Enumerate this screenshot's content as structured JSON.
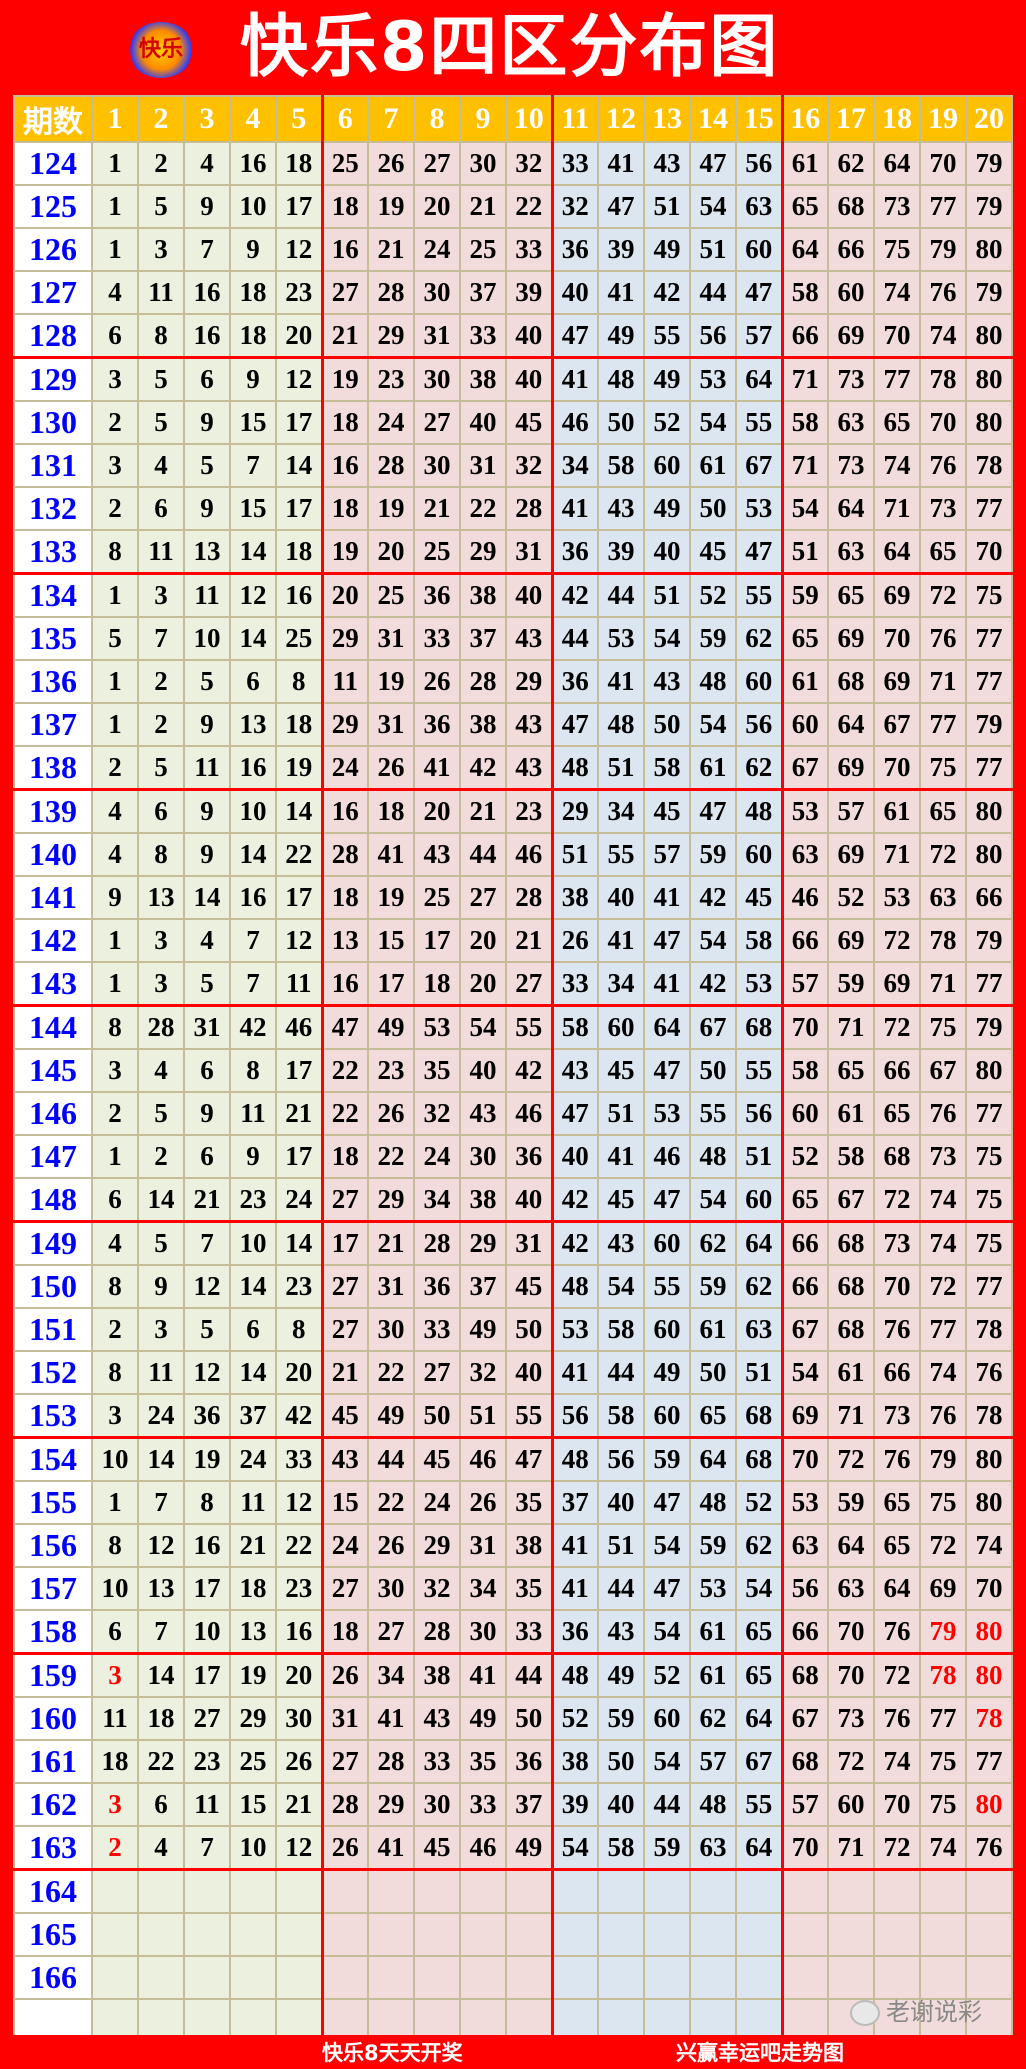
{
  "title": {
    "logo_text": "快乐",
    "text": "快乐8四区分布图"
  },
  "colors": {
    "background": "#ff0000",
    "header": "#ffc000",
    "zone1": "#ebf1de",
    "zone2": "#f2dcdb",
    "zone3": "#dce6f1",
    "zone4": "#f2dcdb",
    "period": "#0000ff",
    "highlight": "#ff0000"
  },
  "table": {
    "headers": [
      "期数",
      "1",
      "2",
      "3",
      "4",
      "5",
      "6",
      "7",
      "8",
      "9",
      "10",
      "11",
      "12",
      "13",
      "14",
      "15",
      "16",
      "17",
      "18",
      "19",
      "20"
    ],
    "rows": [
      {
        "period": "124",
        "nums": [
          "1",
          "2",
          "4",
          "16",
          "18",
          "25",
          "26",
          "27",
          "30",
          "32",
          "33",
          "41",
          "43",
          "47",
          "56",
          "61",
          "62",
          "64",
          "70",
          "79"
        ],
        "red": []
      },
      {
        "period": "125",
        "nums": [
          "1",
          "5",
          "9",
          "10",
          "17",
          "18",
          "19",
          "20",
          "21",
          "22",
          "32",
          "47",
          "51",
          "54",
          "63",
          "65",
          "68",
          "73",
          "77",
          "79"
        ],
        "red": []
      },
      {
        "period": "126",
        "nums": [
          "1",
          "3",
          "7",
          "9",
          "12",
          "16",
          "21",
          "24",
          "25",
          "33",
          "36",
          "39",
          "49",
          "51",
          "60",
          "64",
          "66",
          "75",
          "79",
          "80"
        ],
        "red": []
      },
      {
        "period": "127",
        "nums": [
          "4",
          "11",
          "16",
          "18",
          "23",
          "27",
          "28",
          "30",
          "37",
          "39",
          "40",
          "41",
          "42",
          "44",
          "47",
          "58",
          "60",
          "74",
          "76",
          "79"
        ],
        "red": []
      },
      {
        "period": "128",
        "nums": [
          "6",
          "8",
          "16",
          "18",
          "20",
          "21",
          "29",
          "31",
          "33",
          "40",
          "47",
          "49",
          "55",
          "56",
          "57",
          "66",
          "69",
          "70",
          "74",
          "80"
        ],
        "red": []
      },
      {
        "period": "129",
        "nums": [
          "3",
          "5",
          "6",
          "9",
          "12",
          "19",
          "23",
          "30",
          "38",
          "40",
          "41",
          "48",
          "49",
          "53",
          "64",
          "71",
          "73",
          "77",
          "78",
          "80"
        ],
        "red": []
      },
      {
        "period": "130",
        "nums": [
          "2",
          "5",
          "9",
          "15",
          "17",
          "18",
          "24",
          "27",
          "40",
          "45",
          "46",
          "50",
          "52",
          "54",
          "55",
          "58",
          "63",
          "65",
          "70",
          "80"
        ],
        "red": []
      },
      {
        "period": "131",
        "nums": [
          "3",
          "4",
          "5",
          "7",
          "14",
          "16",
          "28",
          "30",
          "31",
          "32",
          "34",
          "58",
          "60",
          "61",
          "67",
          "71",
          "73",
          "74",
          "76",
          "78"
        ],
        "red": []
      },
      {
        "period": "132",
        "nums": [
          "2",
          "6",
          "9",
          "15",
          "17",
          "18",
          "19",
          "21",
          "22",
          "28",
          "41",
          "43",
          "49",
          "50",
          "53",
          "54",
          "64",
          "71",
          "73",
          "77"
        ],
        "red": []
      },
      {
        "period": "133",
        "nums": [
          "8",
          "11",
          "13",
          "14",
          "18",
          "19",
          "20",
          "25",
          "29",
          "31",
          "36",
          "39",
          "40",
          "45",
          "47",
          "51",
          "63",
          "64",
          "65",
          "70"
        ],
        "red": []
      },
      {
        "period": "134",
        "nums": [
          "1",
          "3",
          "11",
          "12",
          "16",
          "20",
          "25",
          "36",
          "38",
          "40",
          "42",
          "44",
          "51",
          "52",
          "55",
          "59",
          "65",
          "69",
          "72",
          "75"
        ],
        "red": []
      },
      {
        "period": "135",
        "nums": [
          "5",
          "7",
          "10",
          "14",
          "25",
          "29",
          "31",
          "33",
          "37",
          "43",
          "44",
          "53",
          "54",
          "59",
          "62",
          "65",
          "69",
          "70",
          "76",
          "77"
        ],
        "red": []
      },
      {
        "period": "136",
        "nums": [
          "1",
          "2",
          "5",
          "6",
          "8",
          "11",
          "19",
          "26",
          "28",
          "29",
          "36",
          "41",
          "43",
          "48",
          "60",
          "61",
          "68",
          "69",
          "71",
          "77"
        ],
        "red": []
      },
      {
        "period": "137",
        "nums": [
          "1",
          "2",
          "9",
          "13",
          "18",
          "29",
          "31",
          "36",
          "38",
          "43",
          "47",
          "48",
          "50",
          "54",
          "56",
          "60",
          "64",
          "67",
          "77",
          "79"
        ],
        "red": []
      },
      {
        "period": "138",
        "nums": [
          "2",
          "5",
          "11",
          "16",
          "19",
          "24",
          "26",
          "41",
          "42",
          "43",
          "48",
          "51",
          "58",
          "61",
          "62",
          "67",
          "69",
          "70",
          "75",
          "77"
        ],
        "red": []
      },
      {
        "period": "139",
        "nums": [
          "4",
          "6",
          "9",
          "10",
          "14",
          "16",
          "18",
          "20",
          "21",
          "23",
          "29",
          "34",
          "45",
          "47",
          "48",
          "53",
          "57",
          "61",
          "65",
          "80"
        ],
        "red": []
      },
      {
        "period": "140",
        "nums": [
          "4",
          "8",
          "9",
          "14",
          "22",
          "28",
          "41",
          "43",
          "44",
          "46",
          "51",
          "55",
          "57",
          "59",
          "60",
          "63",
          "69",
          "71",
          "72",
          "80"
        ],
        "red": []
      },
      {
        "period": "141",
        "nums": [
          "9",
          "13",
          "14",
          "16",
          "17",
          "18",
          "19",
          "25",
          "27",
          "28",
          "38",
          "40",
          "41",
          "42",
          "45",
          "46",
          "52",
          "53",
          "63",
          "66"
        ],
        "red": []
      },
      {
        "period": "142",
        "nums": [
          "1",
          "3",
          "4",
          "7",
          "12",
          "13",
          "15",
          "17",
          "20",
          "21",
          "26",
          "41",
          "47",
          "54",
          "58",
          "66",
          "69",
          "72",
          "78",
          "79"
        ],
        "red": []
      },
      {
        "period": "143",
        "nums": [
          "1",
          "3",
          "5",
          "7",
          "11",
          "16",
          "17",
          "18",
          "20",
          "27",
          "33",
          "34",
          "41",
          "42",
          "53",
          "57",
          "59",
          "69",
          "71",
          "77"
        ],
        "red": []
      },
      {
        "period": "144",
        "nums": [
          "8",
          "28",
          "31",
          "42",
          "46",
          "47",
          "49",
          "53",
          "54",
          "55",
          "58",
          "60",
          "64",
          "67",
          "68",
          "70",
          "71",
          "72",
          "75",
          "79"
        ],
        "red": []
      },
      {
        "period": "145",
        "nums": [
          "3",
          "4",
          "6",
          "8",
          "17",
          "22",
          "23",
          "35",
          "40",
          "42",
          "43",
          "45",
          "47",
          "50",
          "55",
          "58",
          "65",
          "66",
          "67",
          "80"
        ],
        "red": []
      },
      {
        "period": "146",
        "nums": [
          "2",
          "5",
          "9",
          "11",
          "21",
          "22",
          "26",
          "32",
          "43",
          "46",
          "47",
          "51",
          "53",
          "55",
          "56",
          "60",
          "61",
          "65",
          "76",
          "77"
        ],
        "red": []
      },
      {
        "period": "147",
        "nums": [
          "1",
          "2",
          "6",
          "9",
          "17",
          "18",
          "22",
          "24",
          "30",
          "36",
          "40",
          "41",
          "46",
          "48",
          "51",
          "52",
          "58",
          "68",
          "73",
          "75"
        ],
        "red": []
      },
      {
        "period": "148",
        "nums": [
          "6",
          "14",
          "21",
          "23",
          "24",
          "27",
          "29",
          "34",
          "38",
          "40",
          "42",
          "45",
          "47",
          "54",
          "60",
          "65",
          "67",
          "72",
          "74",
          "75"
        ],
        "red": []
      },
      {
        "period": "149",
        "nums": [
          "4",
          "5",
          "7",
          "10",
          "14",
          "17",
          "21",
          "28",
          "29",
          "31",
          "42",
          "43",
          "60",
          "62",
          "64",
          "66",
          "68",
          "73",
          "74",
          "75"
        ],
        "red": []
      },
      {
        "period": "150",
        "nums": [
          "8",
          "9",
          "12",
          "14",
          "23",
          "27",
          "31",
          "36",
          "37",
          "45",
          "48",
          "54",
          "55",
          "59",
          "62",
          "66",
          "68",
          "70",
          "72",
          "77"
        ],
        "red": []
      },
      {
        "period": "151",
        "nums": [
          "2",
          "3",
          "5",
          "6",
          "8",
          "27",
          "30",
          "33",
          "49",
          "50",
          "53",
          "58",
          "60",
          "61",
          "63",
          "67",
          "68",
          "76",
          "77",
          "78"
        ],
        "red": []
      },
      {
        "period": "152",
        "nums": [
          "8",
          "11",
          "12",
          "14",
          "20",
          "21",
          "22",
          "27",
          "32",
          "40",
          "41",
          "44",
          "49",
          "50",
          "51",
          "54",
          "61",
          "66",
          "74",
          "76"
        ],
        "red": []
      },
      {
        "period": "153",
        "nums": [
          "3",
          "24",
          "36",
          "37",
          "42",
          "45",
          "49",
          "50",
          "51",
          "55",
          "56",
          "58",
          "60",
          "65",
          "68",
          "69",
          "71",
          "73",
          "76",
          "78"
        ],
        "red": []
      },
      {
        "period": "154",
        "nums": [
          "10",
          "14",
          "19",
          "24",
          "33",
          "43",
          "44",
          "45",
          "46",
          "47",
          "48",
          "56",
          "59",
          "64",
          "68",
          "70",
          "72",
          "76",
          "79",
          "80"
        ],
        "red": []
      },
      {
        "period": "155",
        "nums": [
          "1",
          "7",
          "8",
          "11",
          "12",
          "15",
          "22",
          "24",
          "26",
          "35",
          "37",
          "40",
          "47",
          "48",
          "52",
          "53",
          "59",
          "65",
          "75",
          "80"
        ],
        "red": []
      },
      {
        "period": "156",
        "nums": [
          "8",
          "12",
          "16",
          "21",
          "22",
          "24",
          "26",
          "29",
          "31",
          "38",
          "41",
          "51",
          "54",
          "59",
          "62",
          "63",
          "64",
          "65",
          "72",
          "74"
        ],
        "red": []
      },
      {
        "period": "157",
        "nums": [
          "10",
          "13",
          "17",
          "18",
          "23",
          "27",
          "30",
          "32",
          "34",
          "35",
          "41",
          "44",
          "47",
          "53",
          "54",
          "56",
          "63",
          "64",
          "69",
          "70"
        ],
        "red": []
      },
      {
        "period": "158",
        "nums": [
          "6",
          "7",
          "10",
          "13",
          "16",
          "18",
          "27",
          "28",
          "30",
          "33",
          "36",
          "43",
          "54",
          "61",
          "65",
          "66",
          "70",
          "76",
          "79",
          "80"
        ],
        "red": [
          18,
          19
        ]
      },
      {
        "period": "159",
        "nums": [
          "3",
          "14",
          "17",
          "19",
          "20",
          "26",
          "34",
          "38",
          "41",
          "44",
          "48",
          "49",
          "52",
          "61",
          "65",
          "68",
          "70",
          "72",
          "78",
          "80"
        ],
        "red": [
          0,
          18,
          19
        ]
      },
      {
        "period": "160",
        "nums": [
          "11",
          "18",
          "27",
          "29",
          "30",
          "31",
          "41",
          "43",
          "49",
          "50",
          "52",
          "59",
          "60",
          "62",
          "64",
          "67",
          "73",
          "76",
          "77",
          "78"
        ],
        "red": [
          19
        ]
      },
      {
        "period": "161",
        "nums": [
          "18",
          "22",
          "23",
          "25",
          "26",
          "27",
          "28",
          "33",
          "35",
          "36",
          "38",
          "50",
          "54",
          "57",
          "67",
          "68",
          "72",
          "74",
          "75",
          "77"
        ],
        "red": []
      },
      {
        "period": "162",
        "nums": [
          "3",
          "6",
          "11",
          "15",
          "21",
          "28",
          "29",
          "30",
          "33",
          "37",
          "39",
          "40",
          "44",
          "48",
          "55",
          "57",
          "60",
          "70",
          "75",
          "80"
        ],
        "red": [
          0,
          19
        ]
      },
      {
        "period": "163",
        "nums": [
          "2",
          "4",
          "7",
          "10",
          "12",
          "26",
          "41",
          "45",
          "46",
          "49",
          "54",
          "58",
          "59",
          "63",
          "64",
          "70",
          "71",
          "72",
          "74",
          "76"
        ],
        "red": [
          0
        ]
      },
      {
        "period": "164",
        "nums": [],
        "red": []
      },
      {
        "period": "165",
        "nums": [],
        "red": []
      },
      {
        "period": "166",
        "nums": [],
        "red": []
      },
      {
        "period": "",
        "nums": [],
        "red": []
      }
    ]
  },
  "footer": {
    "left": "快乐8天天开奖",
    "right": "兴赢幸运吧走势图"
  },
  "watermark": {
    "text": "老谢说彩",
    "icon": "wechat-icon"
  }
}
